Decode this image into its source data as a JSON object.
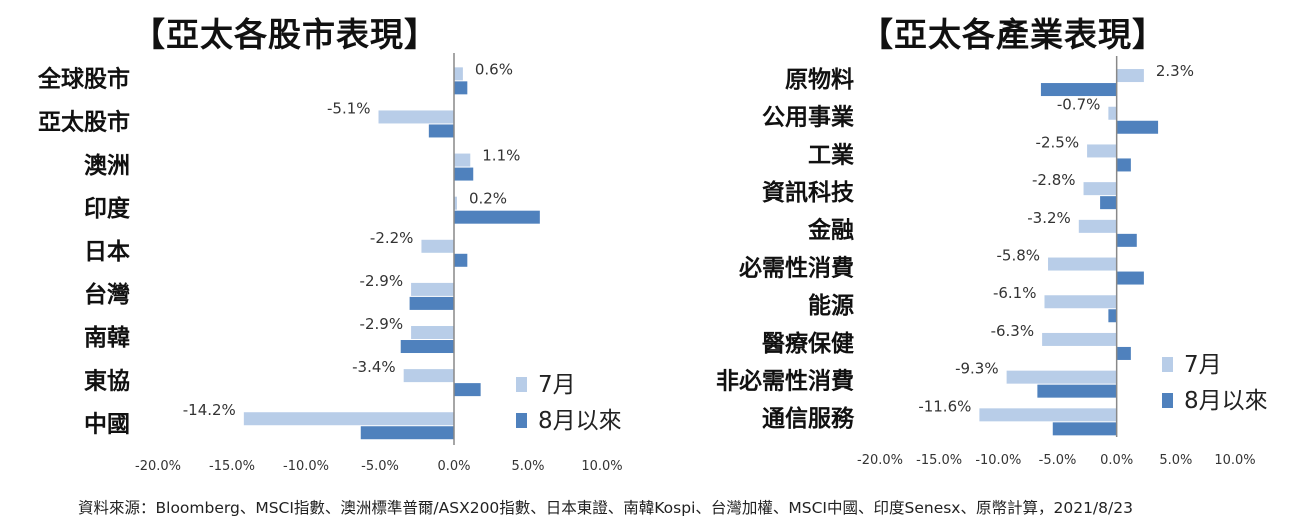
{
  "source_note": "資料來源：Bloomberg、MSCI指數、澳洲標準普爾/ASX200指數、日本東證、南韓Kospi、台灣加權、MSCI中國、印度Senesx、原幣計算，2021/8/23",
  "colors": {
    "jul": "#b8cde8",
    "aug": "#4f81bd",
    "axis": "#888888"
  },
  "chart_data": [
    {
      "type": "bar",
      "orientation": "horizontal",
      "title": "【亞太各股市表現】",
      "categories": [
        "全球股市",
        "亞太股市",
        "澳洲",
        "印度",
        "日本",
        "台灣",
        "南韓",
        "東協",
        "中國"
      ],
      "series": [
        {
          "name": "7月",
          "values": [
            0.6,
            -5.1,
            1.1,
            0.2,
            -2.2,
            -2.9,
            -2.9,
            -3.4,
            -14.2
          ],
          "labels": [
            "0.6%",
            "-5.1%",
            "1.1%",
            "0.2%",
            "-2.2%",
            "-2.9%",
            "-2.9%",
            "-3.4%",
            "-14.2%"
          ]
        },
        {
          "name": "8月以來",
          "values": [
            0.9,
            -1.7,
            1.3,
            5.8,
            0.9,
            -3.0,
            -3.6,
            1.8,
            -6.3
          ]
        }
      ],
      "xlim": [
        -20,
        10
      ],
      "xticks": [
        -20,
        -15,
        -10,
        -5,
        0,
        5,
        10
      ],
      "tick_labels": [
        "-20.0%",
        "-15.0%",
        "-10.0%",
        "-5.0%",
        "0.0%",
        "5.0%",
        "10.0%"
      ],
      "legend": "bottom-right",
      "grid": false
    },
    {
      "type": "bar",
      "orientation": "horizontal",
      "title": "【亞太各產業表現】",
      "categories": [
        "原物料",
        "公用事業",
        "工業",
        "資訊科技",
        "金融",
        "必需性消費",
        "能源",
        "醫療保健",
        "非必需性消費",
        "通信服務"
      ],
      "series": [
        {
          "name": "7月",
          "values": [
            2.3,
            -0.7,
            -2.5,
            -2.8,
            -3.2,
            -5.8,
            -6.1,
            -6.3,
            -9.3,
            -11.6
          ],
          "labels": [
            "2.3%",
            "-0.7%",
            "-2.5%",
            "-2.8%",
            "-3.2%",
            "-5.8%",
            "-6.1%",
            "-6.3%",
            "-9.3%",
            "-11.6%"
          ]
        },
        {
          "name": "8月以來",
          "values": [
            -6.4,
            3.5,
            1.2,
            -1.4,
            1.7,
            2.3,
            -0.7,
            1.2,
            -6.7,
            -5.4
          ]
        }
      ],
      "xlim": [
        -20,
        10
      ],
      "xticks": [
        -20,
        -15,
        -10,
        -5,
        0,
        5,
        10
      ],
      "tick_labels": [
        "-20.0%",
        "-15.0%",
        "-10.0%",
        "-5.0%",
        "0.0%",
        "5.0%",
        "10.0%"
      ],
      "legend": "bottom-right",
      "grid": false
    }
  ]
}
